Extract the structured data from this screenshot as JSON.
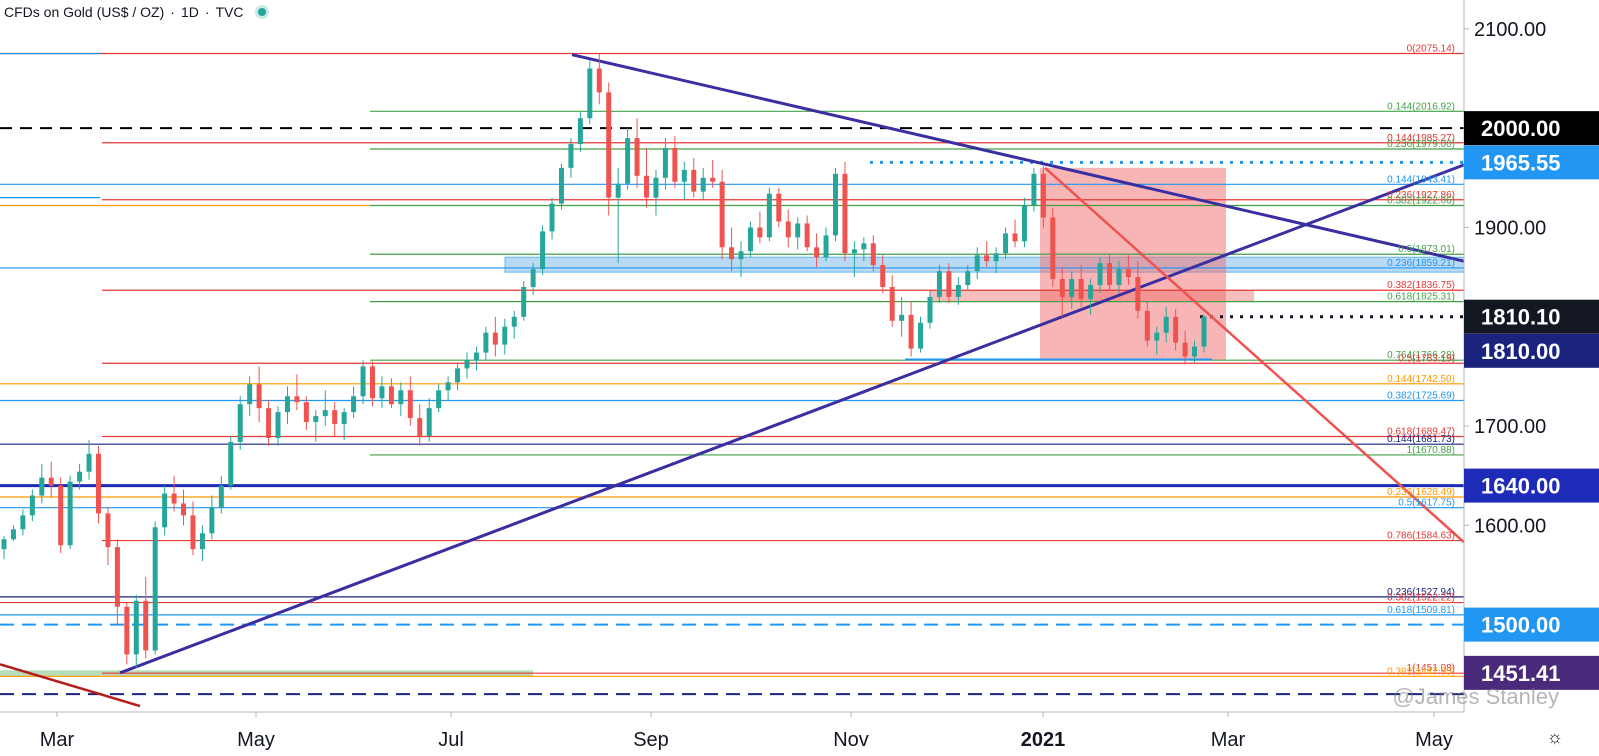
{
  "header": {
    "symbol": "CFDs on Gold (US$ / OZ)",
    "interval": "1D",
    "source": "TVC",
    "live_icon": "live-status-dot"
  },
  "watermark": "@James Stanley",
  "settings_icon": "gear-icon",
  "chart_data": {
    "type": "candlestick",
    "y_axis": {
      "ticks": [
        2100.0,
        2000.0,
        1900.0,
        1800.0,
        1700.0,
        1600.0,
        1500.0
      ],
      "tick_labels": [
        "2100.00",
        "2000.00",
        "1900.00",
        "1800.00",
        "1700.00",
        "1600.00",
        "1500.00"
      ],
      "range": [
        1412,
        2123
      ]
    },
    "x_axis": {
      "labels": [
        "Mar",
        "May",
        "Jul",
        "Sep",
        "Nov",
        "2021",
        "Mar",
        "May"
      ]
    },
    "price_tags": [
      {
        "value": 2000.0,
        "label": "2000.00",
        "color": "#000000"
      },
      {
        "value": 1965.55,
        "label": "1965.55",
        "color": "#2196f3"
      },
      {
        "value": 1810.1,
        "label": "1810.10",
        "color": "#131722"
      },
      {
        "value": 1810.0,
        "label": "1810.00",
        "color": "#1a237e"
      },
      {
        "value": 1640.0,
        "label": "1640.00",
        "color": "#1e2bb8"
      },
      {
        "value": 1500.0,
        "label": "1500.00",
        "color": "#2196f3"
      },
      {
        "value": 1451.41,
        "label": "1451.41",
        "color": "#4a2a7a"
      }
    ],
    "fib_labels": [
      {
        "value": 2075.14,
        "label": "0(2075.14)",
        "color": "#e53935"
      },
      {
        "value": 2016.92,
        "label": "0.144(2016.92)",
        "color": "#43a047"
      },
      {
        "value": 1985.27,
        "label": "0.144(1985.27)",
        "color": "#e53935"
      },
      {
        "value": 1979.0,
        "label": "0.236(1979.00)",
        "color": "#43a047"
      },
      {
        "value": 1943.41,
        "label": "0.144(1943.41)",
        "color": "#2196f3"
      },
      {
        "value": 1927.86,
        "label": "0.236(1927.86)",
        "color": "#e53935"
      },
      {
        "value": 1922.06,
        "label": "0.382(1922.06)",
        "color": "#43a047"
      },
      {
        "value": 1873.01,
        "label": "0.5(1873.01)",
        "color": "#43a047"
      },
      {
        "value": 1859.21,
        "label": "0.236(1859.21)",
        "color": "#2196f3"
      },
      {
        "value": 1836.75,
        "label": "0.382(1836.75)",
        "color": "#e53935"
      },
      {
        "value": 1825.31,
        "label": "0.618(1825.31)",
        "color": "#43a047"
      },
      {
        "value": 1766.28,
        "label": "0.764(1766.28)",
        "color": "#43a047"
      },
      {
        "value": 1763.19,
        "label": "0.5(1763.19)",
        "color": "#e53935"
      },
      {
        "value": 1742.5,
        "label": "0.144(1742.50)",
        "color": "#ff9800"
      },
      {
        "value": 1725.69,
        "label": "0.382(1725.69)",
        "color": "#2196f3"
      },
      {
        "value": 1689.47,
        "label": "0.618(1689.47)",
        "color": "#e53935"
      },
      {
        "value": 1681.73,
        "label": "0.144(1681.73)",
        "color": "#1a237e"
      },
      {
        "value": 1670.88,
        "label": "1(1670.88)",
        "color": "#43a047"
      },
      {
        "value": 1628.49,
        "label": "0.236(1628.49)",
        "color": "#ff9800"
      },
      {
        "value": 1617.75,
        "label": "0.5(1617.75)",
        "color": "#2196f3"
      },
      {
        "value": 1584.63,
        "label": "0.786(1584.63)",
        "color": "#e53935"
      },
      {
        "value": 1527.94,
        "label": "0.236(1527.94)",
        "color": "#1a237e"
      },
      {
        "value": 1522.22,
        "label": "0.382(1522.22)",
        "color": "#e53935"
      },
      {
        "value": 1509.81,
        "label": "0.618(1509.81)",
        "color": "#2196f3"
      },
      {
        "value": 1451.08,
        "label": "1(1451.08)",
        "color": "#e53935"
      },
      {
        "value": 1447.95,
        "label": "0.382(1447.95)",
        "color": "#ff9800"
      }
    ],
    "candles": [
      [
        1576,
        1589,
        1566,
        1586
      ],
      [
        1586,
        1600,
        1584,
        1596
      ],
      [
        1596,
        1616,
        1590,
        1610
      ],
      [
        1610,
        1636,
        1604,
        1630
      ],
      [
        1630,
        1662,
        1622,
        1648
      ],
      [
        1648,
        1664,
        1628,
        1640
      ],
      [
        1640,
        1648,
        1572,
        1580
      ],
      [
        1580,
        1650,
        1576,
        1644
      ],
      [
        1644,
        1662,
        1636,
        1654
      ],
      [
        1654,
        1686,
        1646,
        1672
      ],
      [
        1672,
        1680,
        1602,
        1612
      ],
      [
        1612,
        1618,
        1560,
        1578
      ],
      [
        1578,
        1586,
        1500,
        1518
      ],
      [
        1518,
        1522,
        1460,
        1470
      ],
      [
        1470,
        1530,
        1456,
        1524
      ],
      [
        1524,
        1548,
        1466,
        1474
      ],
      [
        1474,
        1604,
        1470,
        1598
      ],
      [
        1598,
        1640,
        1590,
        1632
      ],
      [
        1632,
        1650,
        1614,
        1622
      ],
      [
        1622,
        1636,
        1600,
        1610
      ],
      [
        1610,
        1624,
        1570,
        1576
      ],
      [
        1576,
        1600,
        1564,
        1592
      ],
      [
        1592,
        1630,
        1586,
        1618
      ],
      [
        1618,
        1650,
        1612,
        1640
      ],
      [
        1640,
        1690,
        1636,
        1684
      ],
      [
        1684,
        1730,
        1676,
        1722
      ],
      [
        1722,
        1750,
        1710,
        1742
      ],
      [
        1742,
        1760,
        1704,
        1718
      ],
      [
        1718,
        1726,
        1680,
        1688
      ],
      [
        1688,
        1720,
        1680,
        1714
      ],
      [
        1714,
        1740,
        1702,
        1730
      ],
      [
        1730,
        1752,
        1716,
        1724
      ],
      [
        1724,
        1730,
        1696,
        1704
      ],
      [
        1704,
        1716,
        1684,
        1710
      ],
      [
        1710,
        1736,
        1700,
        1716
      ],
      [
        1716,
        1724,
        1690,
        1702
      ],
      [
        1702,
        1718,
        1686,
        1714
      ],
      [
        1714,
        1740,
        1708,
        1730
      ],
      [
        1730,
        1766,
        1722,
        1760
      ],
      [
        1760,
        1765,
        1720,
        1728
      ],
      [
        1728,
        1750,
        1718,
        1740
      ],
      [
        1740,
        1748,
        1718,
        1722
      ],
      [
        1722,
        1744,
        1710,
        1736
      ],
      [
        1736,
        1750,
        1700,
        1708
      ],
      [
        1708,
        1722,
        1680,
        1690
      ],
      [
        1690,
        1728,
        1684,
        1718
      ],
      [
        1718,
        1742,
        1714,
        1736
      ],
      [
        1736,
        1750,
        1726,
        1744
      ],
      [
        1744,
        1764,
        1736,
        1758
      ],
      [
        1758,
        1774,
        1748,
        1766
      ],
      [
        1766,
        1780,
        1756,
        1774
      ],
      [
        1774,
        1800,
        1766,
        1794
      ],
      [
        1794,
        1810,
        1770,
        1782
      ],
      [
        1782,
        1808,
        1772,
        1800
      ],
      [
        1800,
        1816,
        1788,
        1810
      ],
      [
        1810,
        1846,
        1806,
        1840
      ],
      [
        1840,
        1864,
        1832,
        1858
      ],
      [
        1858,
        1902,
        1852,
        1896
      ],
      [
        1896,
        1930,
        1888,
        1924
      ],
      [
        1924,
        1964,
        1918,
        1960
      ],
      [
        1960,
        1990,
        1950,
        1984
      ],
      [
        1984,
        2016,
        1976,
        2010
      ],
      [
        2010,
        2068,
        2004,
        2060
      ],
      [
        2060,
        2075,
        2024,
        2036
      ],
      [
        2036,
        2046,
        1912,
        1930
      ],
      [
        1930,
        1960,
        1864,
        1944
      ],
      [
        1944,
        2000,
        1938,
        1990
      ],
      [
        1990,
        2010,
        1940,
        1952
      ],
      [
        1952,
        1980,
        1920,
        1930
      ],
      [
        1930,
        1958,
        1912,
        1950
      ],
      [
        1950,
        1990,
        1938,
        1980
      ],
      [
        1980,
        1992,
        1940,
        1946
      ],
      [
        1946,
        1966,
        1928,
        1958
      ],
      [
        1958,
        1970,
        1930,
        1936
      ],
      [
        1936,
        1960,
        1928,
        1950
      ],
      [
        1950,
        1968,
        1940,
        1946
      ],
      [
        1946,
        1958,
        1868,
        1880
      ],
      [
        1880,
        1900,
        1856,
        1868
      ],
      [
        1868,
        1886,
        1850,
        1876
      ],
      [
        1876,
        1906,
        1870,
        1900
      ],
      [
        1900,
        1916,
        1884,
        1890
      ],
      [
        1890,
        1940,
        1886,
        1934
      ],
      [
        1934,
        1940,
        1900,
        1906
      ],
      [
        1906,
        1918,
        1880,
        1890
      ],
      [
        1890,
        1910,
        1878,
        1904
      ],
      [
        1904,
        1912,
        1876,
        1880
      ],
      [
        1880,
        1894,
        1860,
        1870
      ],
      [
        1870,
        1900,
        1866,
        1892
      ],
      [
        1892,
        1960,
        1886,
        1954
      ],
      [
        1954,
        1966,
        1866,
        1874
      ],
      [
        1874,
        1886,
        1850,
        1878
      ],
      [
        1878,
        1890,
        1866,
        1884
      ],
      [
        1884,
        1892,
        1856,
        1862
      ],
      [
        1862,
        1872,
        1834,
        1840
      ],
      [
        1840,
        1852,
        1800,
        1806
      ],
      [
        1806,
        1830,
        1790,
        1812
      ],
      [
        1812,
        1826,
        1770,
        1778
      ],
      [
        1778,
        1810,
        1774,
        1804
      ],
      [
        1804,
        1836,
        1798,
        1830
      ],
      [
        1830,
        1862,
        1824,
        1856
      ],
      [
        1856,
        1864,
        1824,
        1830
      ],
      [
        1830,
        1850,
        1822,
        1842
      ],
      [
        1842,
        1862,
        1836,
        1856
      ],
      [
        1856,
        1880,
        1848,
        1872
      ],
      [
        1872,
        1886,
        1860,
        1866
      ],
      [
        1866,
        1880,
        1854,
        1874
      ],
      [
        1874,
        1900,
        1868,
        1894
      ],
      [
        1894,
        1908,
        1880,
        1886
      ],
      [
        1886,
        1930,
        1880,
        1922
      ],
      [
        1922,
        1960,
        1916,
        1954
      ],
      [
        1954,
        1962,
        1900,
        1910
      ],
      [
        1910,
        1920,
        1840,
        1848
      ],
      [
        1848,
        1860,
        1810,
        1830
      ],
      [
        1830,
        1856,
        1818,
        1848
      ],
      [
        1848,
        1862,
        1820,
        1828
      ],
      [
        1828,
        1848,
        1812,
        1842
      ],
      [
        1842,
        1870,
        1834,
        1864
      ],
      [
        1864,
        1872,
        1836,
        1842
      ],
      [
        1842,
        1866,
        1834,
        1858
      ],
      [
        1858,
        1872,
        1842,
        1850
      ],
      [
        1850,
        1866,
        1808,
        1816
      ],
      [
        1816,
        1826,
        1780,
        1786
      ],
      [
        1786,
        1800,
        1772,
        1794
      ],
      [
        1794,
        1820,
        1784,
        1810
      ],
      [
        1810,
        1818,
        1776,
        1784
      ],
      [
        1784,
        1796,
        1762,
        1770
      ],
      [
        1770,
        1786,
        1764,
        1780
      ],
      [
        1780,
        1812,
        1774,
        1810
      ]
    ]
  }
}
